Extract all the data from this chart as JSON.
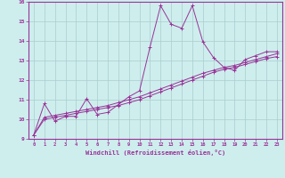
{
  "xlabel": "Windchill (Refroidissement éolien,°C)",
  "ylabel": "",
  "bg_color": "#ceeeed",
  "grid_color": "#aacccc",
  "line_color": "#993399",
  "xlim": [
    -0.5,
    23.5
  ],
  "ylim": [
    9,
    16
  ],
  "xticks": [
    0,
    1,
    2,
    3,
    4,
    5,
    6,
    7,
    8,
    9,
    10,
    11,
    12,
    13,
    14,
    15,
    16,
    17,
    18,
    19,
    20,
    21,
    22,
    23
  ],
  "yticks": [
    9,
    10,
    11,
    12,
    13,
    14,
    15,
    16
  ],
  "series1_x": [
    0,
    1,
    2,
    3,
    4,
    5,
    6,
    7,
    8,
    9,
    10,
    11,
    12,
    13,
    14,
    15,
    16,
    17,
    18,
    19,
    20,
    21,
    22,
    23
  ],
  "series1_y": [
    9.2,
    10.8,
    9.9,
    10.15,
    10.15,
    11.05,
    10.25,
    10.35,
    10.75,
    11.15,
    11.45,
    13.7,
    15.8,
    14.85,
    14.65,
    15.8,
    13.95,
    13.15,
    12.65,
    12.5,
    13.05,
    13.25,
    13.45,
    13.45
  ],
  "series2_x": [
    0,
    1,
    2,
    3,
    4,
    5,
    6,
    7,
    8,
    9,
    10,
    11,
    12,
    13,
    14,
    15,
    16,
    17,
    18,
    19,
    20,
    21,
    22,
    23
  ],
  "series2_y": [
    9.2,
    10.0,
    10.1,
    10.2,
    10.3,
    10.4,
    10.5,
    10.6,
    10.7,
    10.85,
    11.0,
    11.2,
    11.4,
    11.6,
    11.8,
    12.0,
    12.2,
    12.4,
    12.55,
    12.65,
    12.8,
    12.95,
    13.1,
    13.2
  ],
  "series3_x": [
    0,
    1,
    2,
    3,
    4,
    5,
    6,
    7,
    8,
    9,
    10,
    11,
    12,
    13,
    14,
    15,
    16,
    17,
    18,
    19,
    20,
    21,
    22,
    23
  ],
  "series3_y": [
    9.2,
    10.1,
    10.2,
    10.3,
    10.4,
    10.5,
    10.6,
    10.7,
    10.85,
    11.0,
    11.15,
    11.35,
    11.55,
    11.75,
    11.95,
    12.15,
    12.35,
    12.5,
    12.65,
    12.75,
    12.9,
    13.05,
    13.2,
    13.35
  ]
}
